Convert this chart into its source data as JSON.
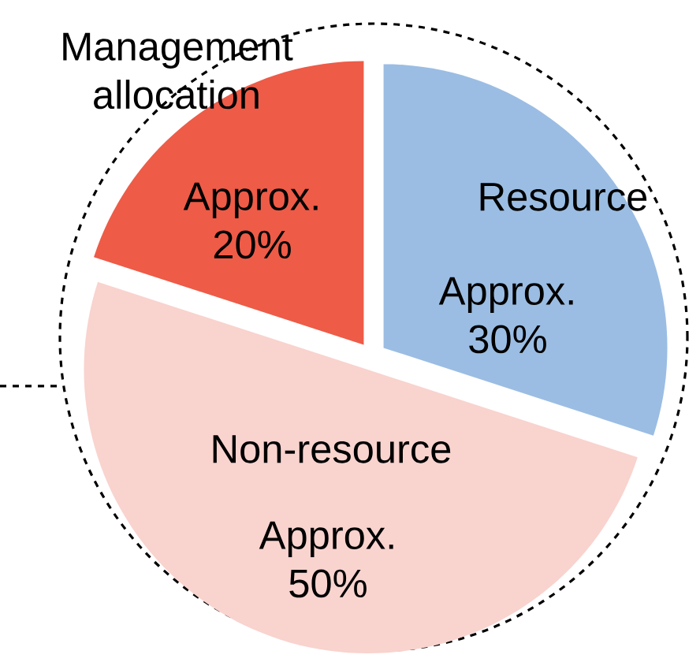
{
  "chart_data": {
    "type": "pie",
    "categories": [
      "Resource",
      "Non-resource",
      "Management allocation"
    ],
    "values": [
      30,
      50,
      20
    ],
    "colors": [
      "#9bbde3",
      "#f9d3ce",
      "#ee5b47"
    ],
    "value_labels": [
      "Approx. 30%",
      "Approx. 50%",
      "Approx. 20%"
    ]
  }
}
